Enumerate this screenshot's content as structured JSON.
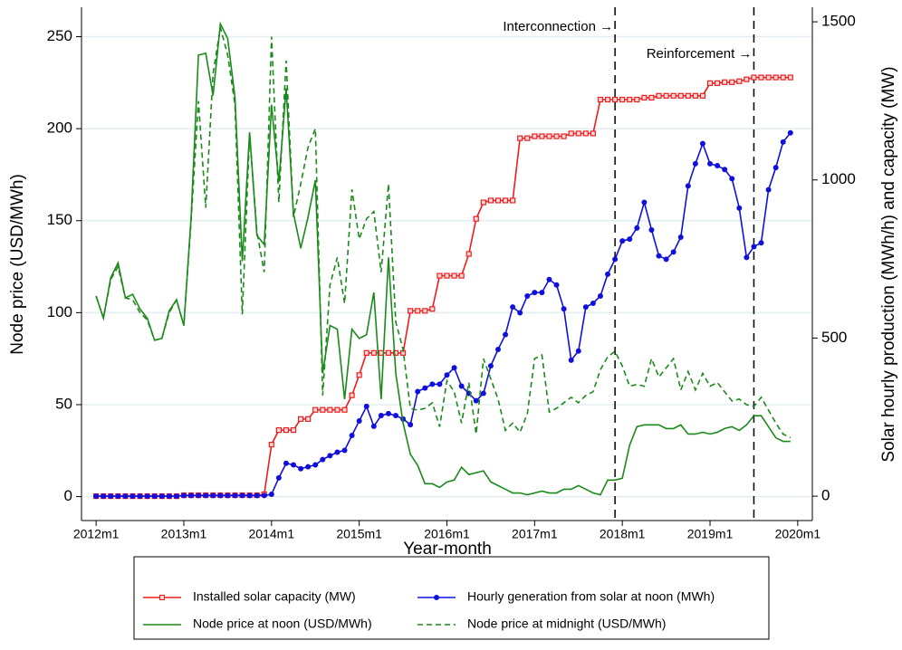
{
  "chart_data": {
    "type": "line",
    "x_label": "Year-month",
    "y_label": "Node price (USD/MWh)",
    "y2_label": "Solar hourly production (MWh/h) and capacity (MW)",
    "x": [
      "2012m1",
      "2012m2",
      "2012m3",
      "2012m4",
      "2012m5",
      "2012m6",
      "2012m7",
      "2012m8",
      "2012m9",
      "2012m10",
      "2012m11",
      "2012m12",
      "2013m1",
      "2013m2",
      "2013m3",
      "2013m4",
      "2013m5",
      "2013m6",
      "2013m7",
      "2013m8",
      "2013m9",
      "2013m10",
      "2013m11",
      "2013m12",
      "2014m1",
      "2014m2",
      "2014m3",
      "2014m4",
      "2014m5",
      "2014m6",
      "2014m7",
      "2014m8",
      "2014m9",
      "2014m10",
      "2014m11",
      "2014m12",
      "2015m1",
      "2015m2",
      "2015m3",
      "2015m4",
      "2015m5",
      "2015m6",
      "2015m7",
      "2015m8",
      "2015m9",
      "2015m10",
      "2015m11",
      "2015m12",
      "2016m1",
      "2016m2",
      "2016m3",
      "2016m4",
      "2016m5",
      "2016m6",
      "2016m7",
      "2016m8",
      "2016m9",
      "2016m10",
      "2016m11",
      "2016m12",
      "2017m1",
      "2017m2",
      "2017m3",
      "2017m4",
      "2017m5",
      "2017m6",
      "2017m7",
      "2017m8",
      "2017m9",
      "2017m10",
      "2017m11",
      "2017m12",
      "2018m1",
      "2018m2",
      "2018m3",
      "2018m4",
      "2018m5",
      "2018m6",
      "2018m7",
      "2018m8",
      "2018m9",
      "2018m10",
      "2018m11",
      "2018m12",
      "2019m1",
      "2019m2",
      "2019m3",
      "2019m4",
      "2019m5",
      "2019m6",
      "2019m7",
      "2019m8",
      "2019m9",
      "2019m10",
      "2019m11",
      "2019m12"
    ],
    "xlim": [
      "2011m11",
      "2020m3"
    ],
    "xticks": [
      "2012m1",
      "2013m1",
      "2014m1",
      "2015m1",
      "2016m1",
      "2017m1",
      "2018m1",
      "2019m1",
      "2020m1"
    ],
    "ylim": [
      -13,
      266
    ],
    "yticks": [
      0,
      50,
      100,
      150,
      200,
      250
    ],
    "y2lim": [
      -77,
      1546
    ],
    "y2ticks": [
      0,
      500,
      1000,
      1500
    ],
    "grid": true,
    "series": [
      {
        "name": "Installed solar capacity (MW)",
        "color": "#ee1c1c",
        "marker": "square",
        "dash": false,
        "axis": "y2",
        "values": [
          0,
          0,
          0,
          0,
          0,
          0,
          0,
          0,
          0,
          0,
          0,
          0,
          3,
          3,
          3,
          3,
          3,
          3,
          3,
          3,
          3,
          3,
          3,
          6,
          163,
          209,
          209,
          209,
          244,
          244,
          273,
          273,
          273,
          273,
          273,
          319,
          383,
          453,
          453,
          453,
          453,
          453,
          453,
          586,
          586,
          586,
          592,
          697,
          697,
          697,
          697,
          766,
          877,
          929,
          935,
          935,
          935,
          935,
          1132,
          1132,
          1138,
          1138,
          1138,
          1138,
          1138,
          1147,
          1147,
          1147,
          1147,
          1254,
          1254,
          1254,
          1254,
          1254,
          1254,
          1260,
          1260,
          1266,
          1266,
          1266,
          1266,
          1266,
          1266,
          1266,
          1306,
          1306,
          1309,
          1309,
          1312,
          1318,
          1324,
          1324,
          1324,
          1324,
          1324,
          1324
        ]
      },
      {
        "name": "Hourly generation from solar at noon (MWh)",
        "color": "#1010dd",
        "marker": "circle",
        "dash": false,
        "axis": "y2",
        "values": [
          0,
          0,
          0,
          0,
          0,
          0,
          0,
          0,
          0,
          0,
          0,
          0,
          2,
          2,
          2,
          2,
          2,
          2,
          2,
          2,
          2,
          2,
          2,
          2,
          6,
          58,
          104,
          99,
          87,
          93,
          99,
          116,
          128,
          139,
          145,
          192,
          238,
          284,
          221,
          255,
          261,
          255,
          244,
          226,
          331,
          342,
          354,
          354,
          383,
          406,
          348,
          325,
          302,
          325,
          412,
          464,
          511,
          598,
          580,
          633,
          644,
          644,
          685,
          668,
          592,
          430,
          459,
          598,
          610,
          633,
          702,
          749,
          807,
          813,
          848,
          929,
          842,
          760,
          749,
          772,
          819,
          981,
          1051,
          1115,
          1051,
          1045,
          1033,
          1004,
          911,
          755,
          789,
          801,
          969,
          1039,
          1120,
          1149
        ]
      },
      {
        "name": "Node price at noon (USD/MWh)",
        "color": "#1a8a1a",
        "marker": "none",
        "dash": false,
        "values": [
          109,
          97,
          119,
          127,
          108,
          110,
          102,
          97,
          85,
          86,
          101,
          107,
          93,
          152,
          240,
          241,
          218,
          257,
          249,
          217,
          128,
          198,
          142,
          137,
          213,
          171,
          222,
          154,
          135,
          152,
          172,
          67,
          93,
          91,
          53,
          91,
          86,
          88,
          111,
          53,
          130,
          67,
          40,
          23,
          17,
          7,
          7,
          5,
          8,
          9,
          16,
          12,
          13,
          14,
          8,
          6,
          4,
          2,
          2,
          1,
          2,
          3,
          2,
          2,
          4,
          4,
          6,
          4,
          2,
          1,
          9,
          9,
          10,
          28,
          38,
          39,
          39,
          39,
          37,
          37,
          39,
          34,
          34,
          35,
          34,
          35,
          37,
          38,
          36,
          39,
          44,
          44,
          38,
          32,
          30,
          30
        ]
      },
      {
        "name": "Node price at midnight (USD/MWh)",
        "color": "#1a8a1a",
        "marker": "none",
        "dash": true,
        "values": [
          109,
          97,
          118,
          125,
          108,
          107,
          100,
          96,
          85,
          86,
          100,
          107,
          93,
          150,
          215,
          157,
          230,
          255,
          240,
          213,
          99,
          197,
          144,
          122,
          250,
          160,
          237,
          152,
          170,
          190,
          200,
          55,
          115,
          130,
          105,
          167,
          140,
          151,
          155,
          122,
          170,
          95,
          80,
          48,
          47,
          48,
          51,
          38,
          63,
          57,
          40,
          62,
          34,
          75,
          64,
          53,
          36,
          40,
          35,
          45,
          75,
          77,
          46,
          48,
          51,
          54,
          51,
          55,
          57,
          69,
          76,
          79,
          71,
          60,
          61,
          60,
          75,
          65,
          70,
          75,
          58,
          68,
          58,
          67,
          60,
          62,
          57,
          52,
          53,
          50,
          49,
          54,
          47,
          40,
          34,
          32
        ]
      }
    ],
    "annotations": [
      {
        "x": "2017m12",
        "text": "Interconnection →"
      },
      {
        "x": "2019m7",
        "text": "Reinforcement →"
      }
    ],
    "legend": "bottom"
  }
}
